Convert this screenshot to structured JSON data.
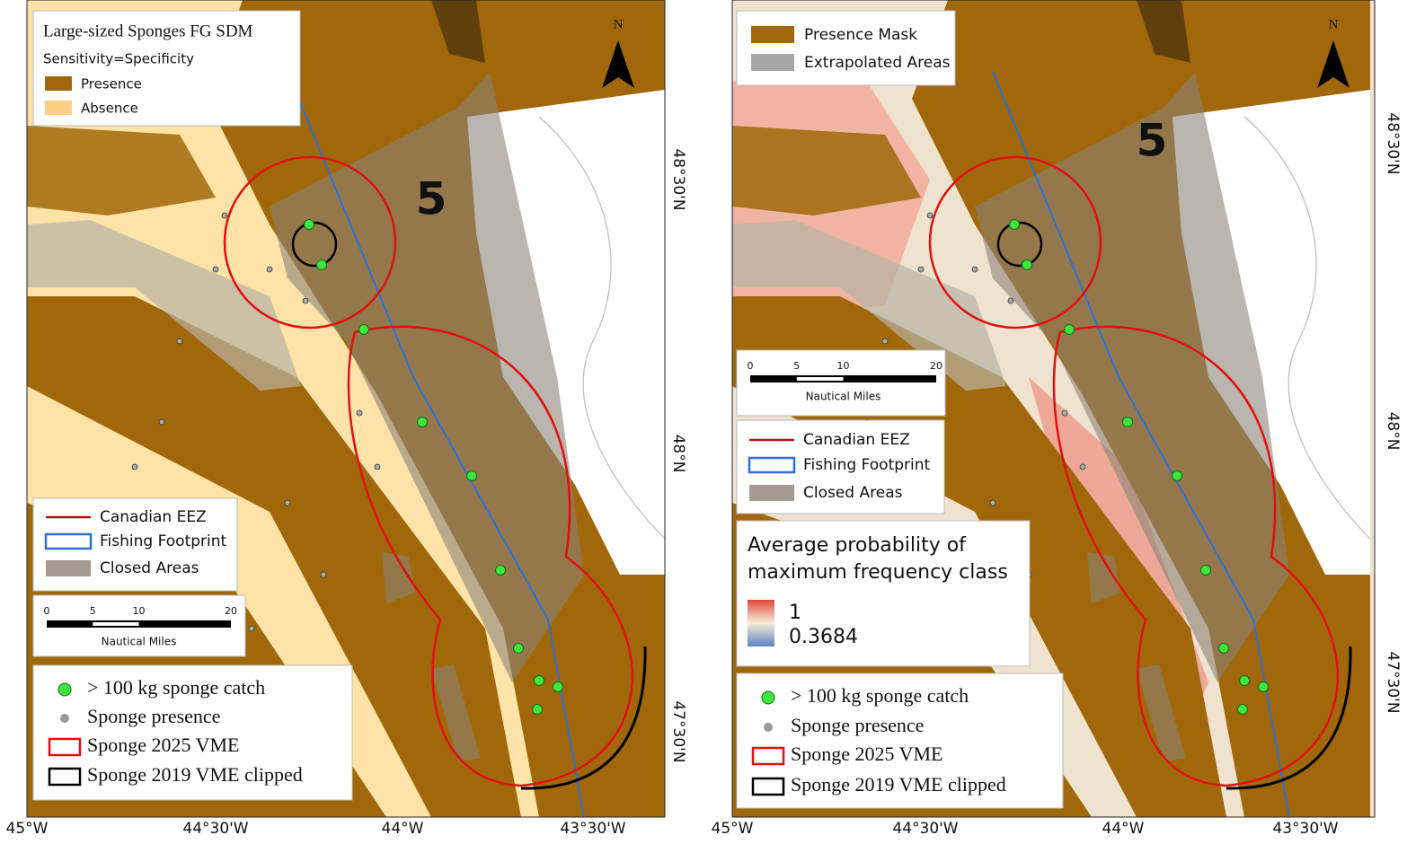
{
  "panels": [
    {
      "top_legend": {
        "title": "Large-sized Sponges FG SDM",
        "subtitle": "Sensitivity=Specificity",
        "items": [
          "Presence",
          "Absence"
        ]
      },
      "north": "N",
      "zone": "5",
      "scale": {
        "ticks": [
          0,
          5,
          10,
          20
        ],
        "unit": "Nautical Miles"
      },
      "line_legend": [
        "Canadian EEZ",
        "Fishing Footprint",
        "Closed Areas"
      ],
      "point_legend": [
        "> 100 kg sponge catch",
        "Sponge presence",
        "Sponge 2025 VME",
        "Sponge 2019 VME clipped"
      ],
      "x_labels": [
        "45°W",
        "44°30'W",
        "44°W",
        "43°30'W"
      ],
      "y_labels": [
        "48°30'N",
        "48°N",
        "47°30'N"
      ]
    },
    {
      "top_legend": {
        "items": [
          "Presence Mask",
          "Extrapolated Areas"
        ]
      },
      "north": "N",
      "zone": "5",
      "scale": {
        "ticks": [
          0,
          5,
          10,
          20
        ],
        "unit": "Nautical Miles"
      },
      "line_legend": [
        "Canadian EEZ",
        "Fishing Footprint",
        "Closed Areas"
      ],
      "colorbar": {
        "title": [
          "Average probability of",
          "maximum frequency class"
        ],
        "max": "1",
        "min": "0.3684"
      },
      "point_legend": [
        "> 100 kg sponge catch",
        "Sponge presence",
        "Sponge 2025 VME",
        "Sponge 2019 VME clipped"
      ],
      "x_labels": [
        "45°W",
        "44°30'W",
        "44°W",
        "43°30'W"
      ],
      "y_labels": [
        "48°30'N",
        "48°N",
        "47°30'N"
      ]
    }
  ]
}
